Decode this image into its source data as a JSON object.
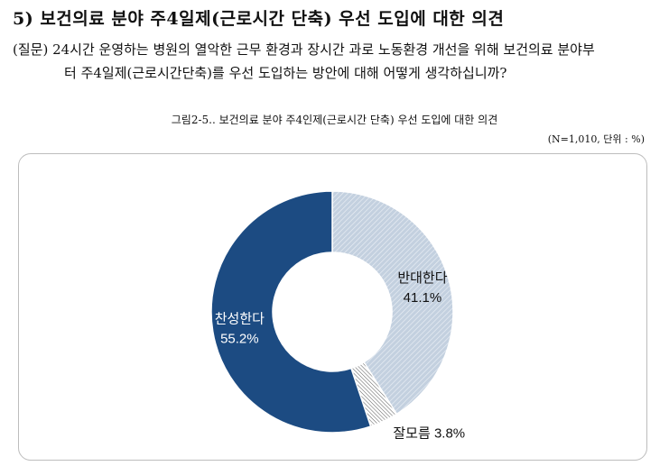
{
  "section": {
    "title": "5) 보건의료 분야 주4일제(근로시간 단축) 우선 도입에 대한 의견"
  },
  "question": {
    "line1": "(질문) 24시간 운영하는 병원의 열악한 근무 환경과 장시간 과로 노동환경 개선을 위해 보건의료 분야부",
    "line2": "터 주4일제(근로시간단축)를 우선 도입하는 방안에 대해 어떻게 생각하십니까?"
  },
  "figure": {
    "caption": "그림2-5.. 보건의료 분야 주4인제(근로시간 단축) 우선 도입에 대한 의견",
    "note": "(N=1,010, 단위 : %)"
  },
  "chart_data": {
    "type": "pie",
    "variant": "donut",
    "start": "top",
    "direction": "clockwise",
    "slices": [
      {
        "label": "반대한다",
        "value": 41.1,
        "value_text": "41.1%",
        "color": "#c3d0df",
        "pattern": "diagonal-stripes",
        "label_style": "inside-two-line",
        "text_color": "#111111"
      },
      {
        "label": "잘모름",
        "value": 3.8,
        "value_text": "3.8%",
        "color": "#ffffff",
        "pattern": "diagonal-dense",
        "label_style": "outside-one-line",
        "text_color": "#111111"
      },
      {
        "label": "찬성한다",
        "value": 55.2,
        "value_text": "55.2%",
        "color": "#1c4b82",
        "pattern": "solid",
        "label_style": "inside-two-line",
        "text_color": "#ffffff"
      }
    ]
  }
}
